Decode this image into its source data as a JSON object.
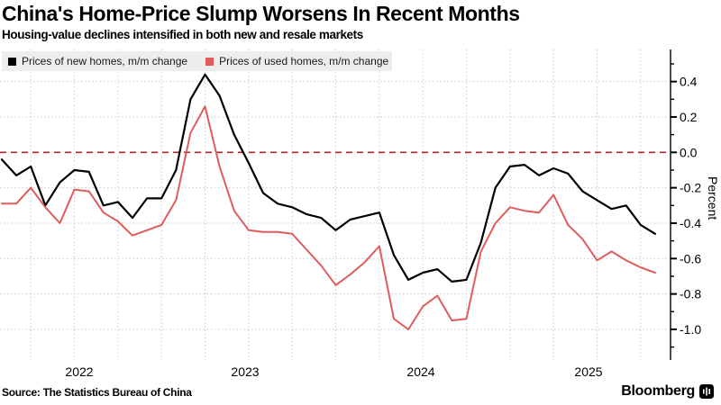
{
  "header": {
    "title": "China's Home-Price Slump Worsens In Recent Months",
    "subtitle": "Housing-value declines intensified in both new and resale markets"
  },
  "legend": {
    "items": [
      {
        "label": "Prices of new homes, m/m change",
        "color": "#000000"
      },
      {
        "label": "Prices of used homes, m/m change",
        "color": "#e05c5c"
      }
    ]
  },
  "footer": {
    "source": "Source: The Statistics Bureau of China",
    "brand": "Bloomberg"
  },
  "chart_data": {
    "type": "line",
    "frequency": "monthly",
    "x_start": "2022-01",
    "x_end": "2025-10",
    "x_tick_labels": [
      "2022",
      "2023",
      "2024",
      "2025"
    ],
    "ylabel": "Percent",
    "ylim": [
      -1.15,
      0.58
    ],
    "y_tick_labels": [
      "0.4",
      "0.2",
      "0.0",
      "-0.2",
      "-0.4",
      "-0.6",
      "-0.8",
      "-1.0"
    ],
    "y_tick_values": [
      0.4,
      0.2,
      0.0,
      -0.2,
      -0.4,
      -0.6,
      -0.8,
      -1.0
    ],
    "grid": "dotted; horizontal every 0.2, vertical quarterly",
    "legend_position": "top-left",
    "zero_line": {
      "value": 0.0,
      "style": "dashed",
      "color": "#a3282d"
    },
    "series": [
      {
        "name": "Prices of new homes, m/m change",
        "color": "#000000",
        "values": [
          -0.04,
          -0.13,
          -0.08,
          -0.3,
          -0.17,
          -0.1,
          -0.11,
          -0.3,
          -0.28,
          -0.37,
          -0.26,
          -0.26,
          -0.1,
          0.3,
          0.44,
          0.32,
          0.1,
          -0.06,
          -0.23,
          -0.29,
          -0.31,
          -0.35,
          -0.37,
          -0.44,
          -0.38,
          -0.36,
          -0.34,
          -0.58,
          -0.72,
          -0.68,
          -0.66,
          -0.73,
          -0.72,
          -0.51,
          -0.2,
          -0.08,
          -0.07,
          -0.13,
          -0.09,
          -0.12,
          -0.22,
          -0.27,
          -0.32,
          -0.3,
          -0.41,
          -0.46
        ]
      },
      {
        "name": "Prices of used homes, m/m change",
        "color": "#e05c5c",
        "values": [
          -0.29,
          -0.29,
          -0.2,
          -0.31,
          -0.4,
          -0.21,
          -0.22,
          -0.34,
          -0.39,
          -0.47,
          -0.44,
          -0.41,
          -0.27,
          0.11,
          0.26,
          -0.08,
          -0.33,
          -0.44,
          -0.45,
          -0.45,
          -0.46,
          -0.55,
          -0.64,
          -0.75,
          -0.69,
          -0.62,
          -0.53,
          -0.94,
          -1.0,
          -0.87,
          -0.81,
          -0.95,
          -0.94,
          -0.56,
          -0.4,
          -0.31,
          -0.33,
          -0.34,
          -0.24,
          -0.41,
          -0.49,
          -0.61,
          -0.56,
          -0.61,
          -0.65,
          -0.68
        ]
      }
    ]
  }
}
